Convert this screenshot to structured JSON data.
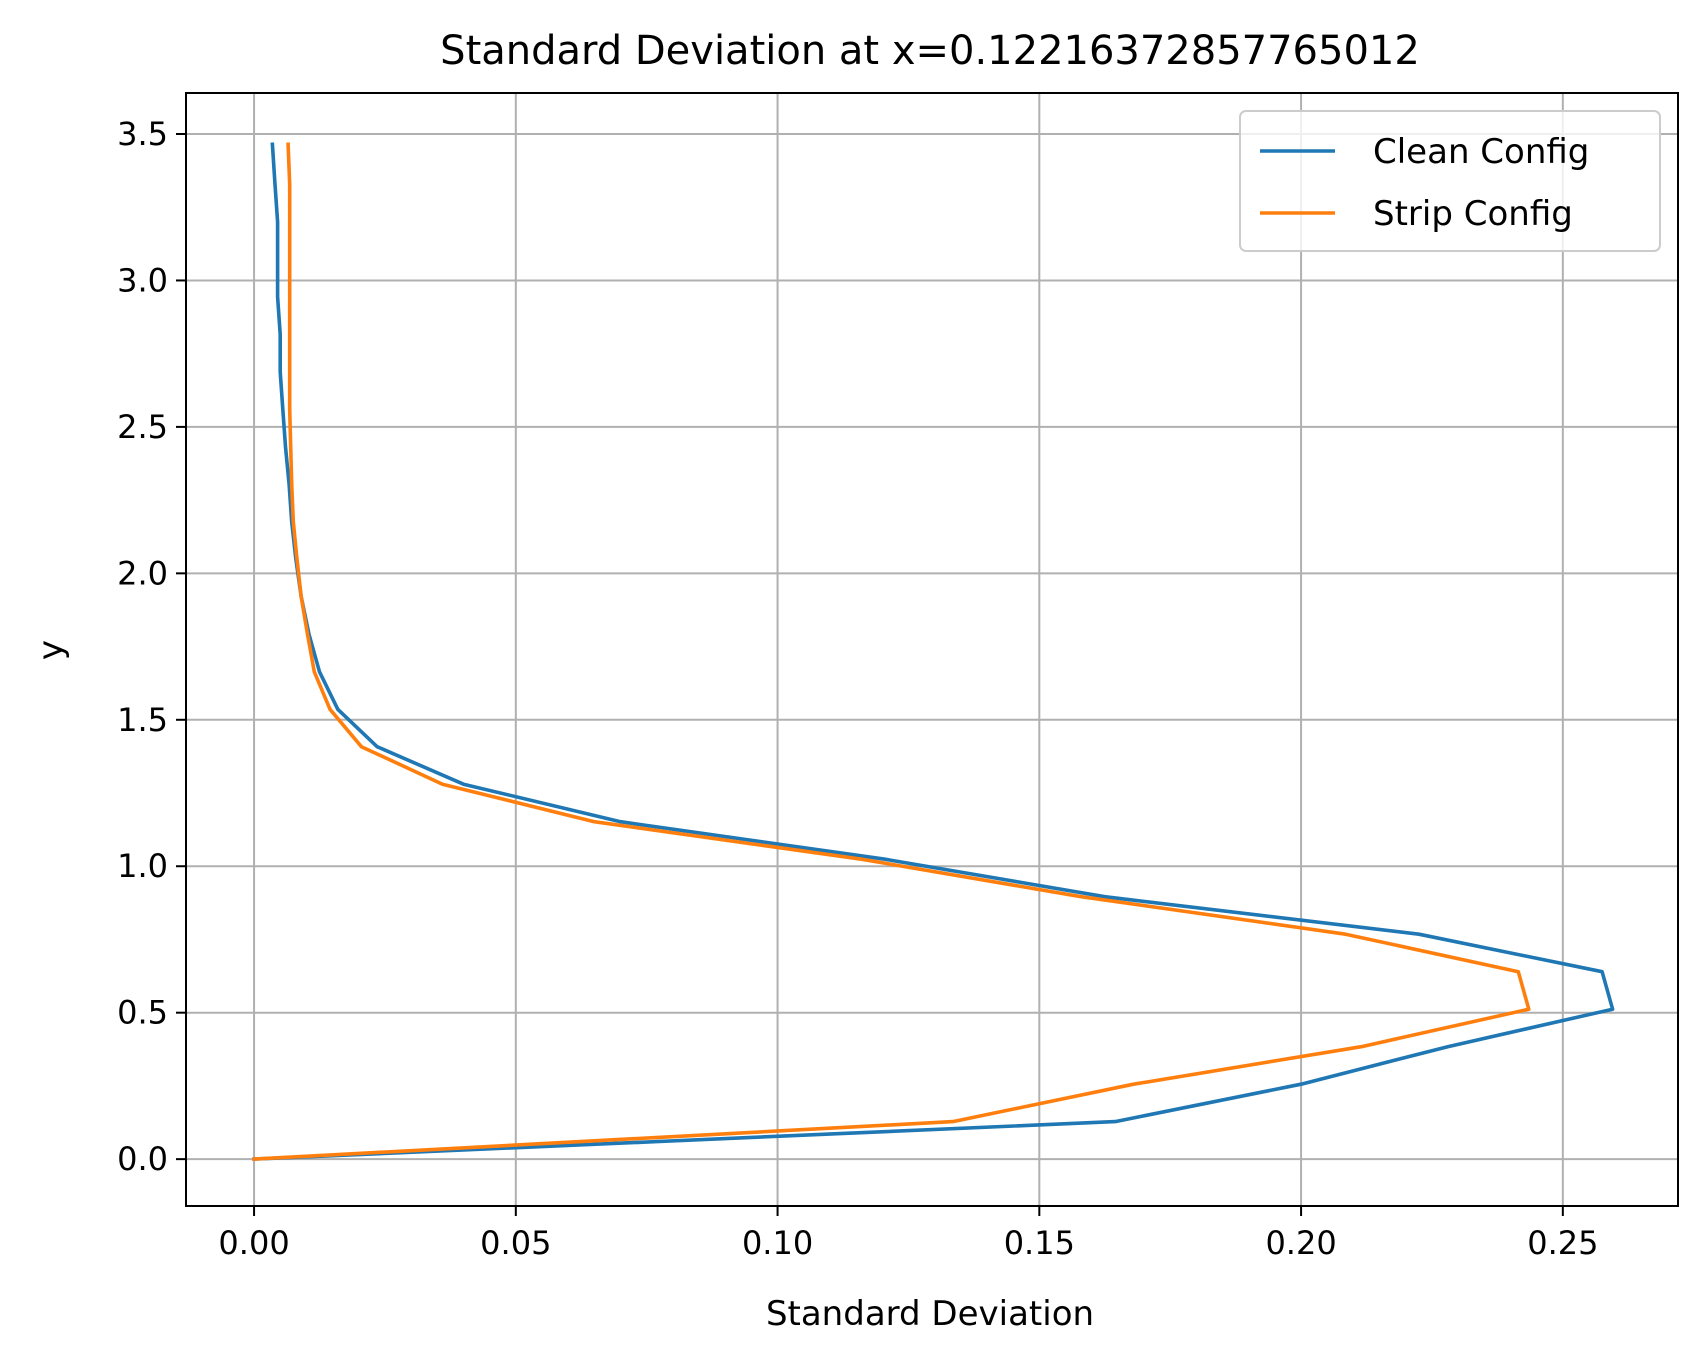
{
  "chart_data": {
    "type": "line",
    "title": "Standard Deviation at x=0.12216372857765012",
    "xlabel": "Standard Deviation",
    "ylabel": "y",
    "xlim": [
      -0.013,
      0.272
    ],
    "ylim": [
      -0.16,
      3.64
    ],
    "xticks": [
      0.0,
      0.05,
      0.1,
      0.15,
      0.2,
      0.25
    ],
    "xtick_labels": [
      "0.00",
      "0.05",
      "0.10",
      "0.15",
      "0.20",
      "0.25"
    ],
    "yticks": [
      0.0,
      0.5,
      1.0,
      1.5,
      2.0,
      2.5,
      3.0,
      3.5
    ],
    "ytick_labels": [
      "0.0",
      "0.5",
      "1.0",
      "1.5",
      "2.0",
      "2.5",
      "3.0",
      "3.5"
    ],
    "grid": true,
    "legend_position": "top-right",
    "series": [
      {
        "name": "Clean Config",
        "color": "#1f77b4",
        "points": [
          [
            0.0,
            0.0
          ],
          [
            0.1645,
            0.128
          ],
          [
            0.2,
            0.256
          ],
          [
            0.228,
            0.384
          ],
          [
            0.2595,
            0.512
          ],
          [
            0.2575,
            0.64
          ],
          [
            0.2225,
            0.768
          ],
          [
            0.1625,
            0.896
          ],
          [
            0.1205,
            1.024
          ],
          [
            0.07,
            1.152
          ],
          [
            0.04,
            1.28
          ],
          [
            0.0235,
            1.408
          ],
          [
            0.016,
            1.536
          ],
          [
            0.0125,
            1.664
          ],
          [
            0.0105,
            1.792
          ],
          [
            0.009,
            1.92
          ],
          [
            0.008,
            2.048
          ],
          [
            0.0072,
            2.176
          ],
          [
            0.0067,
            2.304
          ],
          [
            0.006,
            2.432
          ],
          [
            0.0055,
            2.56
          ],
          [
            0.005,
            2.688
          ],
          [
            0.005,
            2.816
          ],
          [
            0.0045,
            2.944
          ],
          [
            0.0045,
            3.072
          ],
          [
            0.0045,
            3.2
          ],
          [
            0.004,
            3.328
          ],
          [
            0.0035,
            3.465
          ]
        ]
      },
      {
        "name": "Strip Config",
        "color": "#ff7f0e",
        "points": [
          [
            0.0,
            0.0
          ],
          [
            0.1335,
            0.128
          ],
          [
            0.168,
            0.256
          ],
          [
            0.2115,
            0.384
          ],
          [
            0.2435,
            0.512
          ],
          [
            0.2415,
            0.64
          ],
          [
            0.2085,
            0.768
          ],
          [
            0.158,
            0.896
          ],
          [
            0.116,
            1.024
          ],
          [
            0.065,
            1.152
          ],
          [
            0.036,
            1.28
          ],
          [
            0.0205,
            1.408
          ],
          [
            0.0145,
            1.536
          ],
          [
            0.0115,
            1.664
          ],
          [
            0.0102,
            1.792
          ],
          [
            0.009,
            1.92
          ],
          [
            0.0082,
            2.048
          ],
          [
            0.0075,
            2.176
          ],
          [
            0.0072,
            2.304
          ],
          [
            0.007,
            2.432
          ],
          [
            0.0068,
            2.56
          ],
          [
            0.0068,
            2.688
          ],
          [
            0.0068,
            2.816
          ],
          [
            0.0068,
            2.944
          ],
          [
            0.0068,
            3.072
          ],
          [
            0.0068,
            3.2
          ],
          [
            0.0068,
            3.328
          ],
          [
            0.0065,
            3.465
          ]
        ]
      }
    ]
  }
}
